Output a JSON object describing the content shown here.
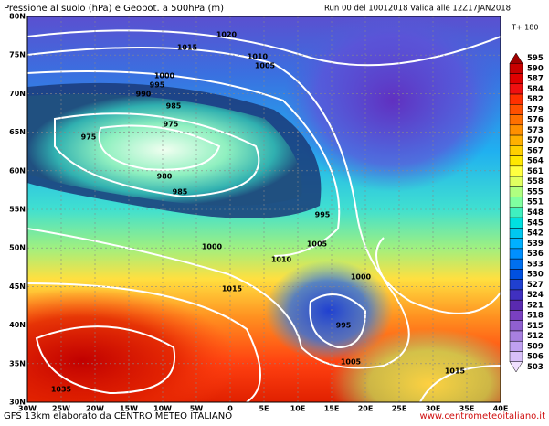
{
  "header": {
    "title": "Pressione al suolo (hPa) e Geopot. a 500hPa (m)",
    "run": "Run 00 del 10012018  Valida alle 12Z17JAN2018",
    "step": "T+ 180"
  },
  "map": {
    "lat_labels": [
      "80N",
      "75N",
      "70N",
      "65N",
      "60N",
      "55N",
      "50N",
      "45N",
      "40N",
      "35N",
      "30N"
    ],
    "lon_labels": [
      "30W",
      "25W",
      "20W",
      "15W",
      "10W",
      "5W",
      "0",
      "5E",
      "10E",
      "15E",
      "20E",
      "25E",
      "30E",
      "35E",
      "40E"
    ],
    "isobar_labels": [
      "1020",
      "1015",
      "1010",
      "1005",
      "1000",
      "995",
      "990",
      "985",
      "975",
      "975",
      "980",
      "985",
      "995",
      "1000",
      "1005",
      "1010",
      "1000",
      "1015",
      "995",
      "1005",
      "1015",
      "1035"
    ]
  },
  "colorbar": {
    "labels": [
      595,
      590,
      587,
      584,
      582,
      579,
      576,
      573,
      570,
      567,
      564,
      561,
      558,
      555,
      551,
      548,
      545,
      542,
      539,
      536,
      533,
      530,
      527,
      524,
      521,
      518,
      515,
      512,
      509,
      506,
      503
    ],
    "colors": [
      "#a00000",
      "#c80000",
      "#e00000",
      "#f01010",
      "#ff3000",
      "#ff5000",
      "#ff7000",
      "#ff9000",
      "#ffb000",
      "#ffd000",
      "#ffe800",
      "#ffff40",
      "#e0ff60",
      "#b0ff80",
      "#80ffa0",
      "#40f0c0",
      "#00e0e0",
      "#00c8f0",
      "#00b0ff",
      "#0090ff",
      "#0070f0",
      "#0050e0",
      "#2040d0",
      "#4030c0",
      "#5a2ab0",
      "#7a40c0",
      "#9060d0",
      "#a880e0",
      "#c0a0f0",
      "#d8c0f8",
      "#f0e0ff"
    ]
  },
  "footer": {
    "credit": "GFS 13km elaborato da CENTRO METEO ITALIANO",
    "url": "www.centrometeoitaliano.it"
  }
}
